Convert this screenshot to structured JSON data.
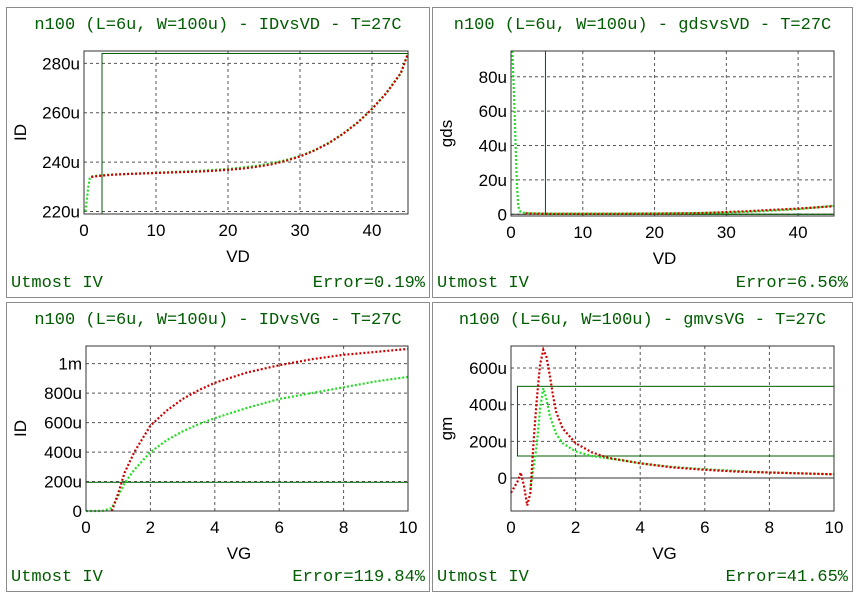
{
  "panels": [
    {
      "title": "n100 (L=6u, W=100u) - IDvsVD - T=27C",
      "model": "Utmost IV",
      "error": "Error=0.19%"
    },
    {
      "title": "n100 (L=6u, W=100u) - gdsvsVD - T=27C",
      "model": "Utmost IV",
      "error": "Error=6.56%"
    },
    {
      "title": "n100 (L=6u, W=100u) - IDvsVG - T=27C",
      "model": "Utmost IV",
      "error": "Error=119.84%"
    },
    {
      "title": "n100 (L=6u, W=100u) - gmvsVG - T=27C",
      "model": "Utmost IV",
      "error": "Error=41.65%"
    }
  ],
  "colors": {
    "measured": "#22dd22",
    "simulated": "#cc0000",
    "box": "#005c00",
    "text": "#005c00",
    "grid": "#555555"
  },
  "chart_data": [
    {
      "type": "line",
      "xlabel": "VD",
      "ylabel": "ID",
      "xlim": [
        0,
        45
      ],
      "ylim": [
        219,
        285
      ],
      "xticks": [
        0,
        10,
        20,
        30,
        40
      ],
      "xticklabels": [
        "0",
        "10",
        "20",
        "30",
        "40"
      ],
      "yticks": [
        220,
        240,
        260,
        280
      ],
      "yticklabels": [
        "220u",
        "240u",
        "260u",
        "280u"
      ],
      "fit_window": {
        "x": [
          2.5,
          45
        ],
        "y": [
          219,
          284
        ]
      },
      "series": [
        {
          "role": "measured",
          "x": [
            0.2,
            0.4,
            0.6,
            0.8,
            1,
            2,
            4,
            6,
            8,
            10,
            12,
            14,
            16,
            18,
            20,
            22,
            24,
            26,
            28,
            30,
            32,
            34,
            36,
            38,
            40,
            42,
            44,
            45
          ],
          "y": [
            220,
            225,
            230,
            233.5,
            234.2,
            234.6,
            235,
            235.2,
            235.5,
            235.7,
            236,
            236.2,
            236.5,
            236.8,
            237.2,
            237.8,
            238.5,
            239.5,
            240.8,
            242.5,
            244.8,
            247.8,
            251.5,
            256,
            261.5,
            268,
            276,
            284
          ]
        },
        {
          "role": "simulated",
          "x": [
            1,
            2,
            4,
            6,
            8,
            10,
            12,
            14,
            16,
            18,
            20,
            22,
            24,
            26,
            28,
            30,
            32,
            34,
            36,
            38,
            40,
            42,
            44,
            45
          ],
          "y": [
            234,
            234.4,
            234.9,
            235.2,
            235.4,
            235.6,
            235.8,
            236,
            236.2,
            236.5,
            236.9,
            237.4,
            238.1,
            239.1,
            240.5,
            242.3,
            244.7,
            247.7,
            251.5,
            256,
            261.5,
            268,
            276,
            284
          ]
        }
      ]
    },
    {
      "type": "line",
      "xlabel": "VD",
      "ylabel": "gds",
      "xlim": [
        0,
        45
      ],
      "ylim": [
        -1,
        95
      ],
      "xticks": [
        0,
        10,
        20,
        30,
        40
      ],
      "xticklabels": [
        "0",
        "10",
        "20",
        "30",
        "40"
      ],
      "yticks": [
        0,
        20,
        40,
        60,
        80
      ],
      "yticklabels": [
        "0",
        "20u",
        "40u",
        "60u",
        "80u"
      ],
      "fit_window": {
        "x": [
          4.8,
          45
        ],
        "y": [
          0,
          95
        ]
      },
      "series": [
        {
          "role": "measured",
          "x": [
            0.2,
            0.5,
            0.8,
            1,
            1.2,
            1.5,
            2,
            3,
            5,
            10,
            15,
            20,
            25,
            30,
            35,
            40,
            45
          ],
          "y": [
            95,
            60,
            20,
            5,
            2,
            1,
            0.7,
            0.5,
            0.4,
            0.4,
            0.4,
            0.5,
            0.7,
            1,
            1.8,
            3,
            5
          ]
        },
        {
          "role": "simulated",
          "x": [
            2,
            5,
            10,
            15,
            20,
            25,
            28,
            30,
            33,
            36,
            40,
            43,
            45
          ],
          "y": [
            0.5,
            0.3,
            0.3,
            0.3,
            0.4,
            0.6,
            0.9,
            1.3,
            1.8,
            2.5,
            3.3,
            4.1,
            4.7
          ]
        }
      ]
    },
    {
      "type": "line",
      "xlabel": "VG",
      "ylabel": "ID",
      "xlim": [
        0,
        10
      ],
      "ylim": [
        0,
        1120
      ],
      "xticks": [
        0,
        2,
        4,
        6,
        8,
        10
      ],
      "xticklabels": [
        "0",
        "2",
        "4",
        "6",
        "8",
        "10"
      ],
      "yticks": [
        0,
        200,
        400,
        600,
        800,
        1000
      ],
      "yticklabels": [
        "0",
        "200u",
        "400u",
        "600u",
        "800u",
        "1m"
      ],
      "fit_window": {
        "x": [
          0,
          10
        ],
        "y": [
          0,
          195
        ]
      },
      "series": [
        {
          "role": "measured",
          "x": [
            0,
            0.5,
            0.8,
            1,
            1.2,
            1.5,
            2,
            2.5,
            3,
            3.5,
            4,
            5,
            6,
            7,
            8,
            9,
            10
          ],
          "y": [
            0,
            0,
            20,
            100,
            190,
            280,
            400,
            480,
            540,
            590,
            630,
            700,
            760,
            800,
            840,
            880,
            910
          ]
        },
        {
          "role": "simulated",
          "x": [
            0.8,
            1,
            1.2,
            1.5,
            2,
            2.5,
            3,
            3.5,
            4,
            5,
            6,
            7,
            8,
            9,
            10
          ],
          "y": [
            0,
            120,
            260,
            400,
            580,
            680,
            760,
            820,
            870,
            940,
            990,
            1030,
            1060,
            1080,
            1100
          ]
        }
      ]
    },
    {
      "type": "line",
      "xlabel": "VG",
      "ylabel": "gm",
      "xlim": [
        0,
        10
      ],
      "ylim": [
        -180,
        720
      ],
      "xticks": [
        0,
        2,
        4,
        6,
        8,
        10
      ],
      "xticklabels": [
        "0",
        "2",
        "4",
        "6",
        "8",
        "10"
      ],
      "yticks": [
        0,
        200,
        400,
        600
      ],
      "yticklabels": [
        "0",
        "200u",
        "400u",
        "600u"
      ],
      "fit_window": {
        "x": [
          0.2,
          10
        ],
        "y": [
          120,
          500
        ]
      },
      "series": [
        {
          "role": "measured",
          "x": [
            0.6,
            0.8,
            0.9,
            1,
            1.1,
            1.2,
            1.4,
            1.6,
            2,
            2.5,
            3,
            3.5,
            4,
            5,
            6,
            7,
            8,
            9,
            10
          ],
          "y": [
            -60,
            180,
            380,
            490,
            430,
            340,
            240,
            190,
            145,
            120,
            108,
            95,
            80,
            60,
            48,
            38,
            30,
            25,
            20
          ]
        },
        {
          "role": "simulated",
          "x": [
            0,
            0.2,
            0.3,
            0.4,
            0.5,
            0.6,
            0.7,
            0.8,
            0.9,
            1,
            1.1,
            1.2,
            1.3,
            1.4,
            1.6,
            2,
            2.5,
            3,
            3.5,
            4,
            5,
            6,
            7,
            8,
            9,
            10
          ],
          "y": [
            -80,
            -20,
            30,
            -40,
            -150,
            -80,
            200,
            430,
            620,
            700,
            660,
            560,
            450,
            360,
            270,
            190,
            140,
            110,
            95,
            80,
            58,
            45,
            35,
            30,
            25,
            20
          ]
        }
      ]
    }
  ]
}
